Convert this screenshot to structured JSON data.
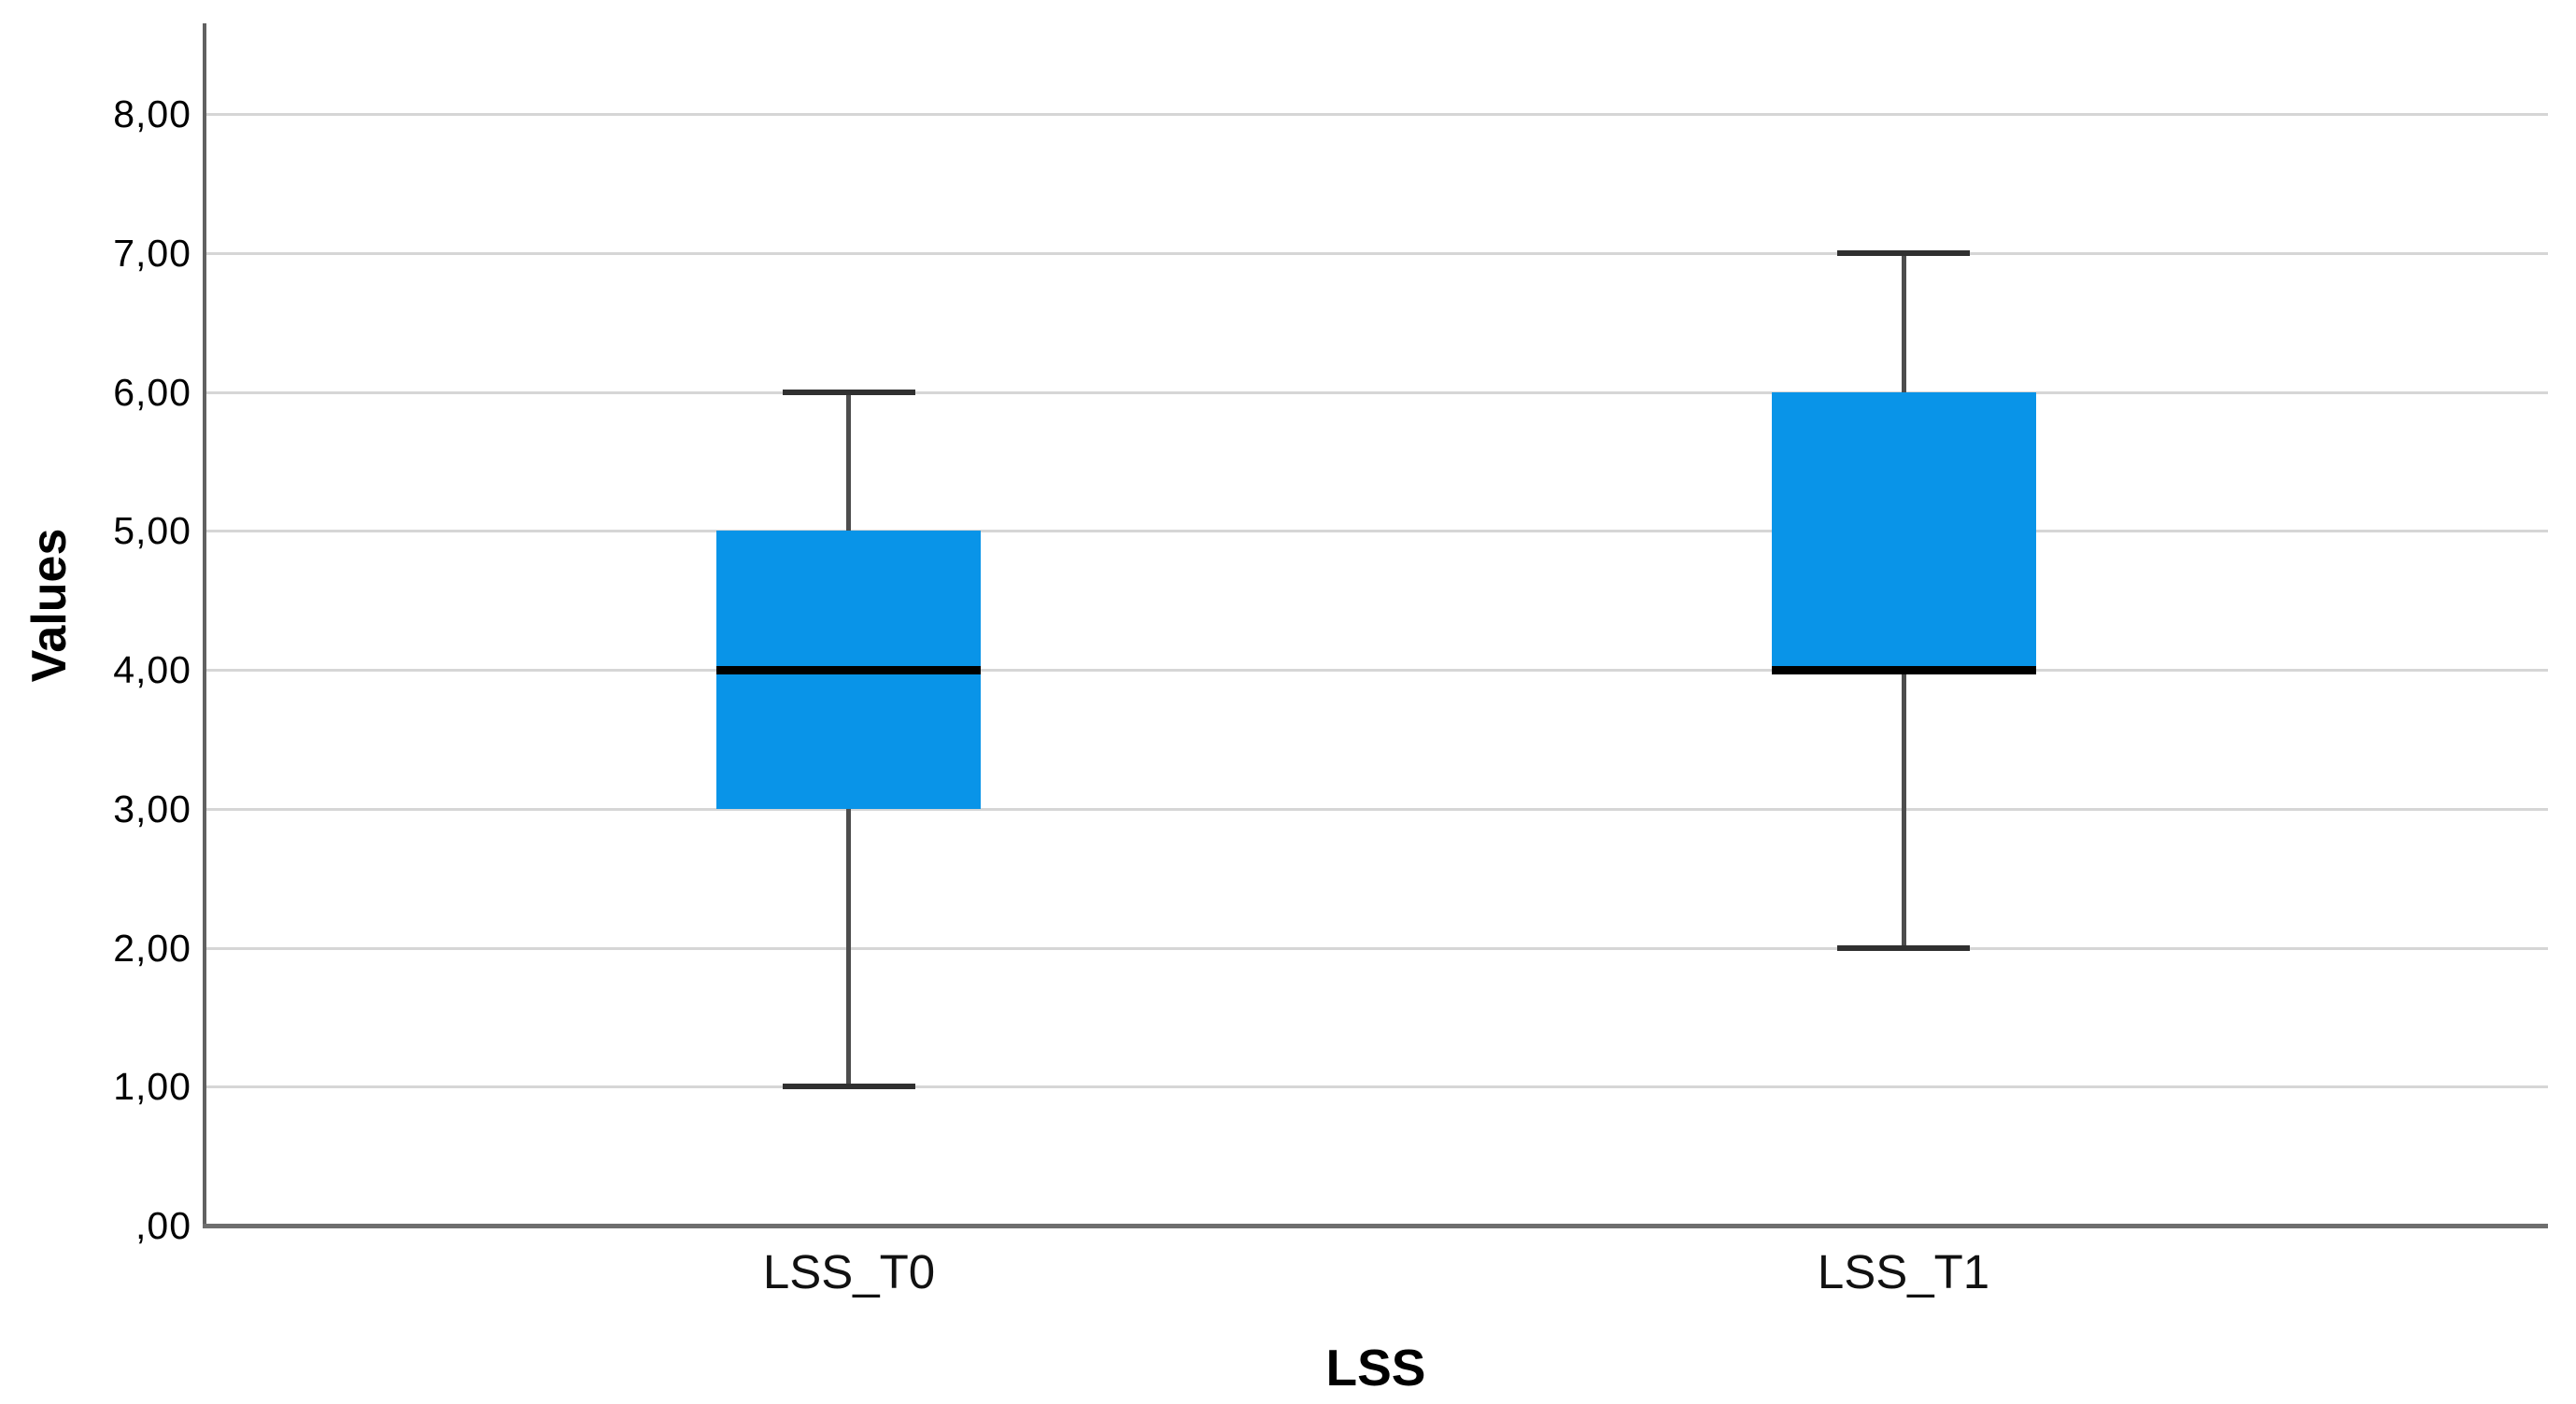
{
  "chart_data": {
    "type": "boxplot",
    "title": "",
    "xlabel": "LSS",
    "ylabel": "Values",
    "categories": [
      "LSS_T0",
      "LSS_T1"
    ],
    "y_tick_labels": [
      ",00",
      "1,00",
      "2,00",
      "3,00",
      "4,00",
      "5,00",
      "6,00",
      "7,00",
      "8,00"
    ],
    "y_tick_values": [
      0,
      1,
      2,
      3,
      4,
      5,
      6,
      7,
      8
    ],
    "ylim": [
      0,
      8.65
    ],
    "grid": "horizontal",
    "legend": "none",
    "decimal_separator": "comma",
    "series": [
      {
        "category": "LSS_T0",
        "whisker_low": 1.0,
        "q1": 3.0,
        "median": 4.0,
        "q3": 5.0,
        "whisker_high": 6.0,
        "outliers": []
      },
      {
        "category": "LSS_T1",
        "whisker_low": 2.0,
        "q1": 4.0,
        "median": 4.0,
        "q3": 6.0,
        "whisker_high": 7.0,
        "outliers": []
      }
    ],
    "colors": {
      "box_fill": "#0994E8",
      "median_line": "#000000",
      "whisker_stem": "#4D4D4D",
      "whisker_cap": "#303030",
      "gridline": "#D6D6D6",
      "axis_line": "#616161",
      "frame_line": "#6E6E6E",
      "text": "#000000",
      "background": "#FFFFFF"
    }
  }
}
